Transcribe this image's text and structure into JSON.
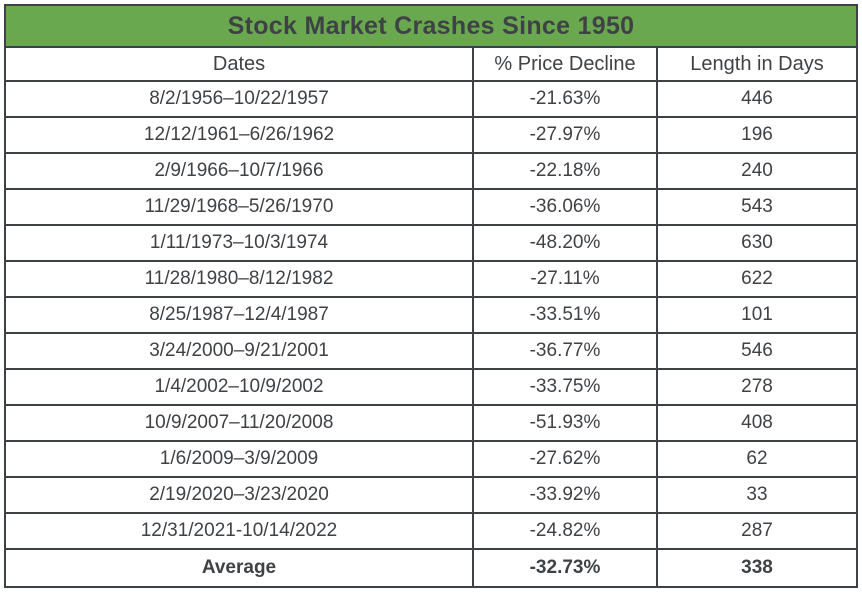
{
  "colors": {
    "header_green": "#6aa84f",
    "title_text": "#fbfaf0",
    "border": "#3f4245",
    "text": "#3f4245",
    "background": "#ffffff"
  },
  "table": {
    "title": "Stock Market Crashes Since 1950",
    "columns": {
      "dates": "Dates",
      "decline": "% Price Decline",
      "days": "Length in Days"
    },
    "rows": [
      {
        "dates": "8/2/1956–10/22/1957",
        "decline": "-21.63%",
        "days": "446"
      },
      {
        "dates": "12/12/1961–6/26/1962",
        "decline": "-27.97%",
        "days": "196"
      },
      {
        "dates": "2/9/1966–10/7/1966",
        "decline": "-22.18%",
        "days": "240"
      },
      {
        "dates": "11/29/1968–5/26/1970",
        "decline": "-36.06%",
        "days": "543"
      },
      {
        "dates": "1/11/1973–10/3/1974",
        "decline": "-48.20%",
        "days": "630"
      },
      {
        "dates": "11/28/1980–8/12/1982",
        "decline": "-27.11%",
        "days": "622"
      },
      {
        "dates": "8/25/1987–12/4/1987",
        "decline": "-33.51%",
        "days": "101"
      },
      {
        "dates": "3/24/2000–9/21/2001",
        "decline": "-36.77%",
        "days": "546"
      },
      {
        "dates": "1/4/2002–10/9/2002",
        "decline": "-33.75%",
        "days": "278"
      },
      {
        "dates": "10/9/2007–11/20/2008",
        "decline": "-51.93%",
        "days": "408"
      },
      {
        "dates": "1/6/2009–3/9/2009",
        "decline": "-27.62%",
        "days": "62"
      },
      {
        "dates": "2/19/2020–3/23/2020",
        "decline": "-33.92%",
        "days": "33"
      },
      {
        "dates": "12/31/2021-10/14/2022",
        "decline": "-24.82%",
        "days": "287"
      }
    ],
    "footer": {
      "dates": "Average",
      "decline": "-32.73%",
      "days": "338"
    }
  },
  "chart_data": {
    "type": "table",
    "title": "Stock Market Crashes Since 1950",
    "columns": [
      "Dates",
      "% Price Decline",
      "Length in Days"
    ],
    "rows": [
      [
        "8/2/1956–10/22/1957",
        -21.63,
        446
      ],
      [
        "12/12/1961–6/26/1962",
        -27.97,
        196
      ],
      [
        "2/9/1966–10/7/1966",
        -22.18,
        240
      ],
      [
        "11/29/1968–5/26/1970",
        -36.06,
        543
      ],
      [
        "1/11/1973–10/3/1974",
        -48.2,
        630
      ],
      [
        "11/28/1980–8/12/1982",
        -27.11,
        622
      ],
      [
        "8/25/1987–12/4/1987",
        -33.51,
        101
      ],
      [
        "3/24/2000–9/21/2001",
        -36.77,
        546
      ],
      [
        "1/4/2002–10/9/2002",
        -33.75,
        278
      ],
      [
        "10/9/2007–11/20/2008",
        -51.93,
        408
      ],
      [
        "1/6/2009–3/9/2009",
        -27.62,
        62
      ],
      [
        "2/19/2020–3/23/2020",
        -33.92,
        33
      ],
      [
        "12/31/2021-10/14/2022",
        -24.82,
        287
      ]
    ],
    "average": {
      "price_decline_pct": -32.73,
      "length_days": 338
    }
  }
}
